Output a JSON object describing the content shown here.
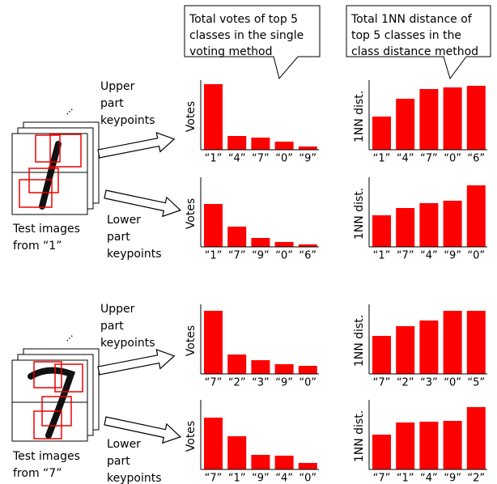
{
  "chart_data": [
    {
      "type": "bar",
      "ylabel": "Votes",
      "categories": [
        "“1”",
        "“4”",
        "“7”",
        "“0”",
        "“9”"
      ],
      "values": [
        81,
        17,
        15,
        10,
        4
      ],
      "color": "#ff0000",
      "ylim": [
        0,
        82
      ]
    },
    {
      "type": "bar",
      "ylabel": "1NN dist.",
      "categories": [
        "“1”",
        "“4”",
        "“7”",
        "“0”",
        "“6”"
      ],
      "values": [
        41,
        63,
        75,
        77,
        79
      ],
      "color": "#ff0000",
      "ylim": [
        0,
        82
      ]
    },
    {
      "type": "bar",
      "ylabel": "Votes",
      "categories": [
        "“1”",
        "“7”",
        "“9”",
        "“0”",
        "“6”"
      ],
      "values": [
        53,
        25,
        11,
        6,
        3
      ],
      "color": "#ff0000",
      "ylim": [
        0,
        82
      ]
    },
    {
      "type": "bar",
      "ylabel": "1NN dist.",
      "categories": [
        "“1”",
        "“7”",
        "“4”",
        "“9”",
        "“0”"
      ],
      "values": [
        39,
        48,
        54,
        57,
        76
      ],
      "color": "#ff0000",
      "ylim": [
        0,
        82
      ]
    },
    {
      "type": "bar",
      "ylabel": "Votes",
      "categories": [
        "“7”",
        "“2”",
        "“3”",
        "“9”",
        "“0”"
      ],
      "values": [
        78,
        24,
        17,
        12,
        10
      ],
      "color": "#ff0000",
      "ylim": [
        0,
        82
      ]
    },
    {
      "type": "bar",
      "ylabel": "1NN dist.",
      "categories": [
        "“7”",
        "“2”",
        "“3”",
        "“0”",
        "“5”"
      ],
      "values": [
        47,
        59,
        66,
        78,
        78
      ],
      "color": "#ff0000",
      "ylim": [
        0,
        82
      ]
    },
    {
      "type": "bar",
      "ylabel": "Votes",
      "categories": [
        "“7”",
        "“1”",
        "“9”",
        "“4”",
        "“0”"
      ],
      "values": [
        64,
        41,
        18,
        17,
        8
      ],
      "color": "#ff0000",
      "ylim": [
        0,
        82
      ]
    },
    {
      "type": "bar",
      "ylabel": "1NN dist.",
      "categories": [
        "“7”",
        "“1”",
        "“4”",
        "“9”",
        "“2”"
      ],
      "values": [
        43,
        58,
        59,
        60,
        77
      ],
      "color": "#ff0000",
      "ylim": [
        0,
        82
      ]
    }
  ],
  "callouts": [
    [
      "Total votes of top 5",
      "classes in the single",
      "voting method"
    ],
    [
      "Total 1NN distance of",
      "top 5 classes in the",
      "class distance method"
    ]
  ],
  "labels": [
    [
      "Upper",
      "part",
      "keypoints"
    ],
    [
      "Lower",
      "part",
      "keypoints"
    ],
    [
      "Test images",
      "from “1”"
    ],
    [
      "Upper",
      "part",
      "keypoints"
    ],
    [
      "Lower",
      "part",
      "keypoints"
    ],
    [
      "Test images",
      "from “7”"
    ]
  ]
}
